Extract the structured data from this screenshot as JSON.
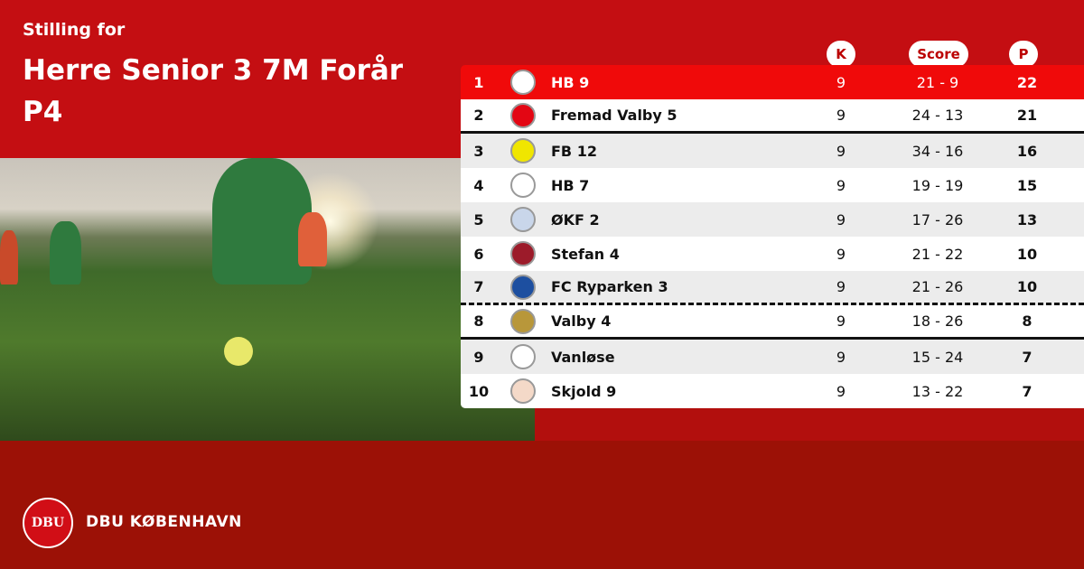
{
  "header": {
    "subtitle": "Stilling for",
    "title": "Herre Senior 3 7M Forår P4"
  },
  "columns": {
    "k": "K",
    "score": "Score",
    "p": "P"
  },
  "rows": [
    {
      "pos": "1",
      "team": "HB 9",
      "k": "9",
      "score": "21 - 9",
      "p": "22",
      "logo_color": "#ffffff"
    },
    {
      "pos": "2",
      "team": "Fremad Valby 5",
      "k": "9",
      "score": "24 - 13",
      "p": "21",
      "logo_color": "#e30613"
    },
    {
      "pos": "3",
      "team": "FB 12",
      "k": "9",
      "score": "34 - 16",
      "p": "16",
      "logo_color": "#f0e600"
    },
    {
      "pos": "4",
      "team": "HB 7",
      "k": "9",
      "score": "19 - 19",
      "p": "15",
      "logo_color": "#ffffff"
    },
    {
      "pos": "5",
      "team": "ØKF 2",
      "k": "9",
      "score": "17 - 26",
      "p": "13",
      "logo_color": "#c9d6ea"
    },
    {
      "pos": "6",
      "team": "Stefan 4",
      "k": "9",
      "score": "21 - 22",
      "p": "10",
      "logo_color": "#9c1b2a"
    },
    {
      "pos": "7",
      "team": "FC Ryparken 3",
      "k": "9",
      "score": "21 - 26",
      "p": "10",
      "logo_color": "#1d4fa0"
    },
    {
      "pos": "8",
      "team": "Valby 4",
      "k": "9",
      "score": "18 - 26",
      "p": "8",
      "logo_color": "#b8973a"
    },
    {
      "pos": "9",
      "team": "Vanløse",
      "k": "9",
      "score": "15 - 24",
      "p": "7",
      "logo_color": "#ffffff"
    },
    {
      "pos": "10",
      "team": "Skjold 9",
      "k": "9",
      "score": "13 - 22",
      "p": "7",
      "logo_color": "#f4d9c8"
    }
  ],
  "footer": {
    "logo_text": "DBU",
    "brand": "DBU KØBENHAVN"
  },
  "colors": {
    "background": "#c40e12",
    "highlight": "#f00a0a",
    "footer": "#9c1106"
  }
}
